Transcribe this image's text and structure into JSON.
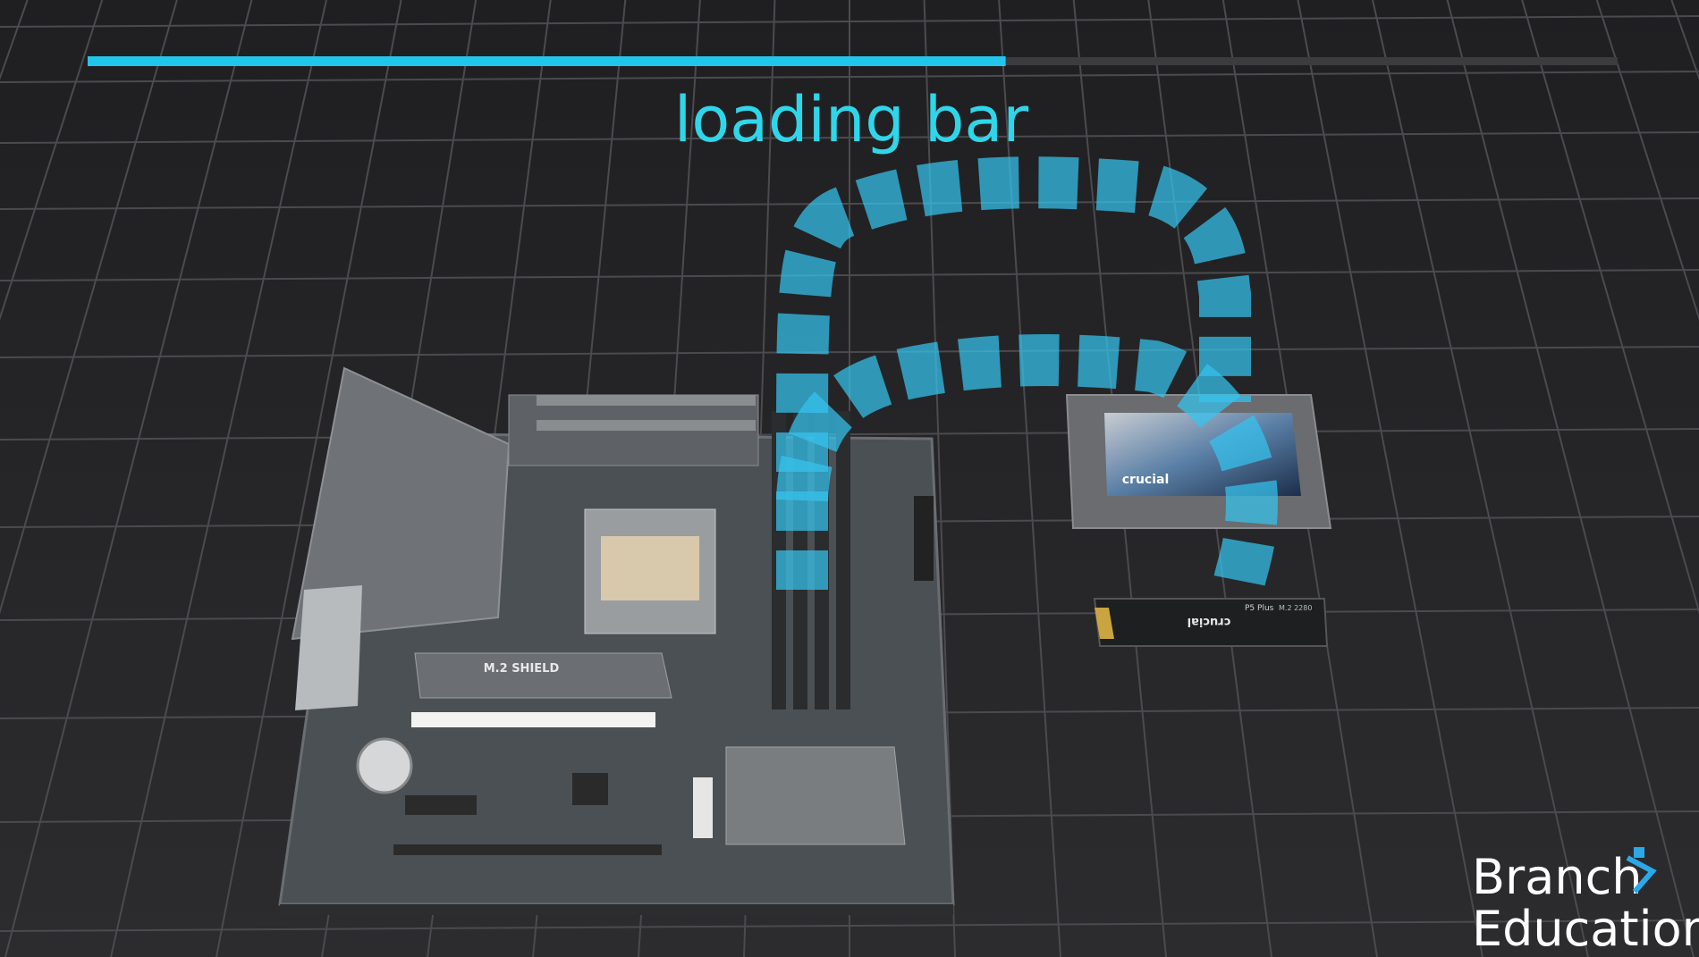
{
  "loading_bar": {
    "label": "loading bar",
    "progress": 60
  },
  "motherboard": {
    "shield_label": "M.2 SHIELD"
  },
  "ssd": {
    "brand": "crucial"
  },
  "nvme": {
    "brand": "crucial",
    "model": "P5 Plus",
    "form": "M.2 2280"
  },
  "logo": {
    "line1": "Branch",
    "line2": "Education"
  }
}
